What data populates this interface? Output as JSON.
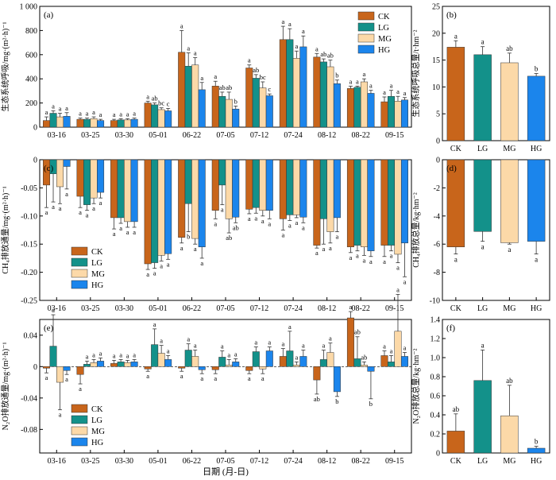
{
  "groups": [
    "CK",
    "LG",
    "MG",
    "HG"
  ],
  "colors": [
    "#c8651b",
    "#13918a",
    "#fcd9a8",
    "#1b85ec"
  ],
  "chart_data": [
    {
      "panel": "(a)",
      "type": "bar",
      "grouped": true,
      "ylabel": "生态系统呼吸/mg·(m²·h)⁻¹",
      "xlabel": "",
      "categories": [
        "03-16",
        "03-25",
        "03-30",
        "05-01",
        "06-22",
        "07-05",
        "07-12",
        "07-24",
        "08-12",
        "08-22",
        "09-15"
      ],
      "ylim": [
        0,
        1000
      ],
      "yticks": [
        0,
        200,
        400,
        600,
        800,
        1000
      ],
      "ytick_labels": [
        "0",
        "200",
        "400",
        "600",
        "800",
        "1 000"
      ],
      "legend": "top-right",
      "series": [
        {
          "name": "CK",
          "values": [
            55,
            65,
            55,
            200,
            620,
            340,
            490,
            725,
            580,
            320,
            210
          ],
          "errors": [
            30,
            10,
            10,
            15,
            180,
            40,
            25,
            110,
            30,
            20,
            40
          ],
          "letters": [
            "a",
            "a",
            "a",
            "a",
            "a",
            "a",
            "a",
            "a",
            "a",
            "a",
            "a"
          ]
        },
        {
          "name": "LG",
          "values": [
            115,
            65,
            60,
            185,
            505,
            255,
            405,
            725,
            540,
            330,
            255
          ],
          "errors": [
            20,
            10,
            10,
            15,
            110,
            35,
            30,
            90,
            25,
            10,
            50
          ],
          "letters": [
            "a",
            "a",
            "a",
            "ab",
            "a",
            "ab",
            "ab",
            "a",
            "ab",
            "a",
            "a"
          ]
        },
        {
          "name": "MG",
          "values": [
            85,
            70,
            60,
            145,
            515,
            230,
            325,
            570,
            500,
            375,
            215
          ],
          "errors": [
            30,
            15,
            10,
            15,
            60,
            60,
            50,
            60,
            55,
            25,
            40
          ],
          "letters": [
            "a",
            "a",
            "a",
            "bc",
            "a",
            "ab",
            "bc",
            "a",
            "ab",
            "a",
            "a"
          ]
        },
        {
          "name": "HG",
          "values": [
            90,
            55,
            65,
            135,
            310,
            150,
            260,
            665,
            360,
            280,
            225
          ],
          "errors": [
            30,
            10,
            10,
            20,
            60,
            25,
            15,
            90,
            30,
            25,
            20
          ],
          "letters": [
            "a",
            "a",
            "a",
            "c",
            "a",
            "b",
            "c",
            "a",
            "b",
            "a",
            "a"
          ]
        }
      ]
    },
    {
      "panel": "(b)",
      "type": "bar",
      "ylabel": "生态系统呼吸总量/t·hm⁻²",
      "categories": [
        "CK",
        "LG",
        "MG",
        "HG"
      ],
      "values": [
        17.4,
        16.0,
        14.5,
        12.0
      ],
      "errors": [
        1.2,
        1.5,
        1.8,
        0.5
      ],
      "letters": [
        "a",
        "a",
        "ab",
        "b"
      ],
      "ylim": [
        0,
        25
      ],
      "yticks": [
        0,
        5,
        10,
        15,
        20,
        25
      ]
    },
    {
      "panel": "(c)",
      "type": "bar",
      "grouped": true,
      "ylabel": "CH₄排放通量/mg·(m²·h)⁻¹",
      "categories": [
        "03-16",
        "03-25",
        "03-30",
        "05-01",
        "06-22",
        "07-05",
        "07-12",
        "07-24",
        "08-12",
        "08-22",
        "09-15"
      ],
      "ylim": [
        -0.25,
        0
      ],
      "yticks": [
        -0.25,
        -0.2,
        -0.15,
        -0.1,
        -0.05,
        0
      ],
      "ytick_labels": [
        "-0.25",
        "-0.20",
        "-0.15",
        "-0.10",
        "-0.05",
        "0"
      ],
      "legend": "lower-left",
      "series": [
        {
          "name": "CK",
          "values": [
            -0.045,
            -0.065,
            -0.103,
            -0.185,
            -0.138,
            -0.09,
            -0.088,
            -0.105,
            -0.152,
            -0.155,
            -0.152
          ],
          "errors": [
            0.04,
            0.02,
            0.02,
            0.01,
            0.01,
            0.015,
            0.008,
            0.02,
            0.005,
            0.01,
            0.02
          ],
          "letters": [
            "a",
            "a",
            "a",
            "a",
            "a",
            "a",
            "a",
            "a",
            "a",
            "a",
            "a"
          ]
        },
        {
          "name": "LG",
          "values": [
            -0.025,
            -0.08,
            -0.103,
            -0.183,
            -0.078,
            -0.045,
            -0.085,
            -0.098,
            -0.105,
            -0.152,
            -0.152
          ],
          "errors": [
            0.05,
            0.01,
            0.01,
            0.01,
            0.05,
            0.035,
            0.01,
            0.01,
            0.045,
            0.01,
            0.01
          ],
          "letters": [
            "a",
            "a",
            "a",
            "a",
            "b",
            "a",
            "a",
            "a",
            "a",
            "a",
            "a"
          ]
        },
        {
          "name": "MG",
          "values": [
            -0.048,
            -0.068,
            -0.11,
            -0.17,
            -0.14,
            -0.105,
            -0.09,
            -0.098,
            -0.128,
            -0.155,
            -0.168
          ],
          "errors": [
            0.03,
            0.01,
            0.01,
            0.01,
            0.01,
            0.025,
            0.01,
            0.005,
            0.02,
            0.015,
            0.015
          ],
          "letters": [
            "a",
            "a",
            "a",
            "a",
            "a",
            "ab",
            "a",
            "a",
            "a",
            "a",
            "a"
          ]
        },
        {
          "name": "HG",
          "values": [
            -0.012,
            -0.058,
            -0.11,
            -0.167,
            -0.155,
            -0.102,
            -0.09,
            -0.102,
            -0.103,
            -0.162,
            -0.148
          ],
          "errors": [
            0.04,
            0.01,
            0.01,
            0.01,
            0.02,
            0.01,
            0.015,
            0.01,
            0.025,
            0.01,
            0.06
          ],
          "letters": [
            "a",
            "a",
            "a",
            "a",
            "a",
            "ab",
            "a",
            "a",
            "a",
            "a",
            "a"
          ]
        }
      ]
    },
    {
      "panel": "(d)",
      "type": "bar",
      "ylabel": "CH₄排放总量/kg·hm⁻²",
      "categories": [
        "CK",
        "LG",
        "MG",
        "HG"
      ],
      "values": [
        -6.2,
        -5.1,
        -5.9,
        -5.8
      ],
      "errors": [
        0.5,
        0.7,
        0.1,
        0.9
      ],
      "letters": [
        "a",
        "a",
        "a",
        "a"
      ],
      "ylim": [
        -10,
        0
      ],
      "yticks": [
        -10,
        -8,
        -6,
        -4,
        -2,
        0
      ]
    },
    {
      "panel": "(e)",
      "type": "bar",
      "grouped": true,
      "ylabel": "N₂O排放通量/mg·(m²·h)⁻¹",
      "xlabel": "日期 (月-日)",
      "categories": [
        "03-16",
        "03-25",
        "03-30",
        "05-01",
        "06-22",
        "07-05",
        "07-12",
        "07-24",
        "08-12",
        "08-22",
        "09-15"
      ],
      "ylim": [
        -0.11,
        0.06
      ],
      "yticks": [
        -0.08,
        -0.04,
        0,
        0.04
      ],
      "ytick_labels": [
        "-0.08",
        "-0.04",
        "0",
        "0.04"
      ],
      "legend": "lower-left",
      "series": [
        {
          "name": "CK",
          "values": [
            -0.002,
            -0.01,
            0.004,
            -0.003,
            -0.002,
            -0.004,
            -0.005,
            0.013,
            -0.017,
            0.062,
            0.014
          ],
          "errors": [
            0.006,
            0.012,
            0.004,
            0.003,
            0.004,
            0.005,
            0.004,
            0.01,
            0.018,
            0.008,
            0.006
          ],
          "letters": [
            "a",
            "a",
            "a",
            "a",
            "a",
            "a",
            "a",
            "a",
            "ab",
            "a",
            "a"
          ]
        },
        {
          "name": "LG",
          "values": [
            0.026,
            0.003,
            0.006,
            0.028,
            0.021,
            0.012,
            0.019,
            0.02,
            0.009,
            0.01,
            0.006
          ],
          "errors": [
            0.04,
            0.004,
            0.003,
            0.02,
            0.008,
            0.008,
            0.006,
            0.025,
            0.012,
            0.028,
            0.008
          ],
          "letters": [
            "a",
            "a",
            "a",
            "a",
            "a",
            "a",
            "a",
            "a",
            "a",
            "ab",
            "a"
          ]
        },
        {
          "name": "MG",
          "values": [
            -0.02,
            0.005,
            0.005,
            0.017,
            0.013,
            0.002,
            -0.003,
            0.002,
            0.018,
            0.002,
            0.045
          ],
          "errors": [
            0.035,
            0.004,
            0.003,
            0.01,
            0.008,
            0.007,
            0.006,
            0.004,
            0.012,
            0.004,
            0.047
          ],
          "letters": [
            "a",
            "a",
            "a",
            "a",
            "a",
            "a",
            "a",
            "a",
            "a",
            "ab",
            "a"
          ]
        },
        {
          "name": "HG",
          "values": [
            -0.005,
            0.007,
            0.006,
            0.009,
            -0.004,
            0.006,
            0.02,
            0.013,
            -0.032,
            -0.006,
            0.013
          ],
          "errors": [
            0.005,
            0.004,
            0.003,
            0.005,
            0.005,
            0.004,
            0.005,
            0.008,
            0.006,
            0.035,
            0.005
          ],
          "letters": [
            "a",
            "a",
            "a",
            "a",
            "a",
            "a",
            "a",
            "a",
            "b",
            "b",
            "a"
          ]
        }
      ]
    },
    {
      "panel": "(f)",
      "type": "bar",
      "ylabel": "N₂O排放总量/kg·hm⁻²",
      "categories": [
        "CK",
        "LG",
        "MG",
        "HG"
      ],
      "values": [
        0.23,
        0.76,
        0.39,
        0.05
      ],
      "errors": [
        0.18,
        0.32,
        0.32,
        0.02
      ],
      "letters": [
        "ab",
        "a",
        "ab",
        "b"
      ],
      "ylim": [
        0,
        1.4
      ],
      "yticks": [
        0,
        0.2,
        0.4,
        0.6,
        0.8,
        1.0,
        1.2,
        1.4
      ],
      "ytick_labels": [
        "0",
        "0.2",
        "0.4",
        "0.6",
        "0.8",
        "1.0",
        "1.2",
        "1.4"
      ]
    }
  ]
}
